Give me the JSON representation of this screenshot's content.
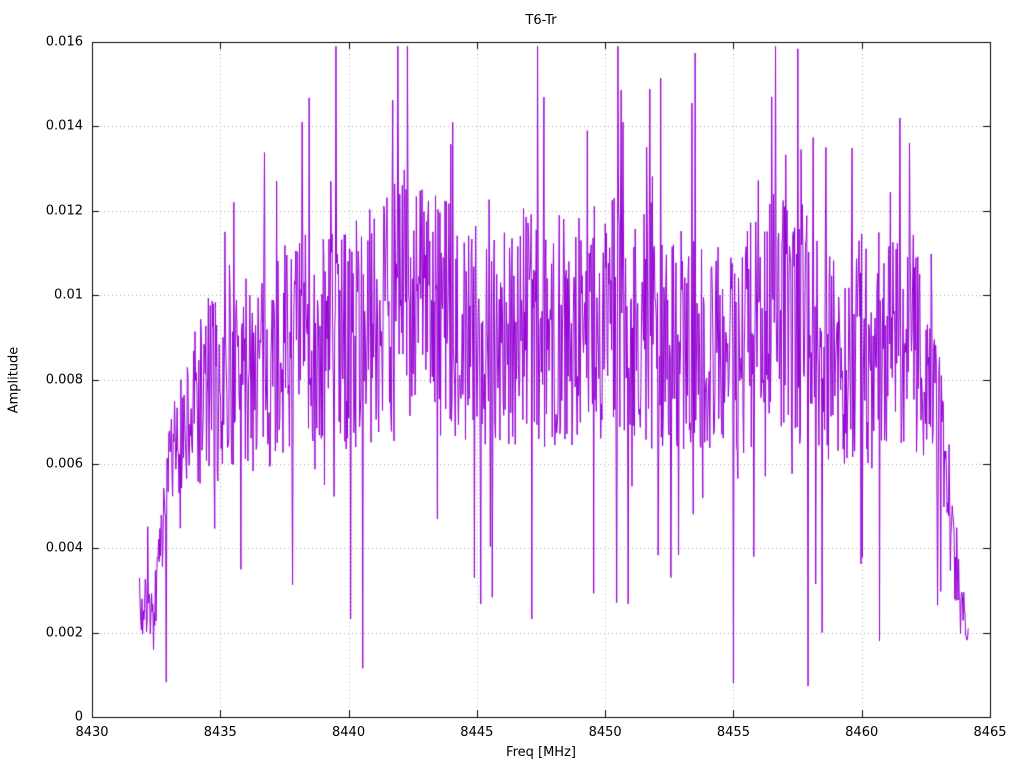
{
  "chart_data": {
    "type": "line",
    "title": "T6-Tr",
    "xlabel": "Freq [MHz]",
    "ylabel": "Amplitude",
    "xlim": [
      8430,
      8465
    ],
    "ylim": [
      0,
      0.016
    ],
    "grid": "dotted",
    "legend": "none",
    "line_color": "#9400d3",
    "grid_color": "#b0b0b0",
    "border_color": "#000000",
    "xticks": [
      {
        "v": 8430,
        "label": "8430"
      },
      {
        "v": 8435,
        "label": "8435"
      },
      {
        "v": 8440,
        "label": "8440"
      },
      {
        "v": 8445,
        "label": "8445"
      },
      {
        "v": 8450,
        "label": "8450"
      },
      {
        "v": 8455,
        "label": "8455"
      },
      {
        "v": 8460,
        "label": "8460"
      },
      {
        "v": 8465,
        "label": "8465"
      }
    ],
    "yticks": [
      {
        "v": 0,
        "label": "0"
      },
      {
        "v": 0.002,
        "label": "0.002"
      },
      {
        "v": 0.004,
        "label": "0.004"
      },
      {
        "v": 0.006,
        "label": "0.006"
      },
      {
        "v": 0.008,
        "label": "0.008"
      },
      {
        "v": 0.01,
        "label": "0.01"
      },
      {
        "v": 0.012,
        "label": "0.012"
      },
      {
        "v": 0.014,
        "label": "0.014"
      },
      {
        "v": 0.016,
        "label": "0.016"
      }
    ],
    "series": [
      {
        "name": "T6-Tr",
        "description": "Noisy amplitude spectrum: rises from ~0.002 near 8432 MHz, fluctuates around 0.009 (roughly 0.005-0.013) across 8434-8462 MHz, rolls off to ~0.0015 by 8464 MHz",
        "x_start": 8431.85,
        "x_end": 8464.15,
        "points": 1300,
        "envelope": [
          [
            8431.85,
            0.0024
          ],
          [
            8432.5,
            0.0028
          ],
          [
            8433.0,
            0.0052
          ],
          [
            8433.6,
            0.0068
          ],
          [
            8434.5,
            0.0078
          ],
          [
            8436.0,
            0.0082
          ],
          [
            8438.0,
            0.0088
          ],
          [
            8440.0,
            0.009
          ],
          [
            8441.5,
            0.0095
          ],
          [
            8442.3,
            0.0102
          ],
          [
            8443.5,
            0.0096
          ],
          [
            8445.0,
            0.009
          ],
          [
            8447.0,
            0.0092
          ],
          [
            8449.0,
            0.0092
          ],
          [
            8450.5,
            0.0095
          ],
          [
            8452.0,
            0.009
          ],
          [
            8453.5,
            0.0088
          ],
          [
            8455.0,
            0.0085
          ],
          [
            8456.5,
            0.0098
          ],
          [
            8458.0,
            0.0088
          ],
          [
            8459.5,
            0.0085
          ],
          [
            8461.0,
            0.0092
          ],
          [
            8462.0,
            0.009
          ],
          [
            8462.8,
            0.0078
          ],
          [
            8463.4,
            0.005
          ],
          [
            8463.8,
            0.003
          ],
          [
            8464.15,
            0.0018
          ]
        ],
        "noise": {
          "seed": 7,
          "rel_spread": 0.3,
          "spike_prob": 0.12,
          "spike_scale": 0.35
        },
        "extremes": [
          [
            8442.3,
            0.0159
          ],
          [
            8444.05,
            0.0141
          ],
          [
            8449.3,
            0.0139
          ],
          [
            8450.7,
            0.0141
          ],
          [
            8456.5,
            0.0147
          ],
          [
            8461.5,
            0.0142
          ],
          [
            8437.2,
            0.0127
          ],
          [
            8439.3,
            0.0127
          ],
          [
            8458.6,
            0.0135
          ],
          [
            8455.0,
            0.0008
          ],
          [
            8444.9,
            0.0033
          ],
          [
            8458.45,
            0.002
          ],
          [
            8460.7,
            0.0018
          ],
          [
            8435.8,
            0.0035
          ],
          [
            8432.4,
            0.0016
          ]
        ],
        "value_min": 0.0006,
        "value_max": 0.0159
      }
    ]
  }
}
